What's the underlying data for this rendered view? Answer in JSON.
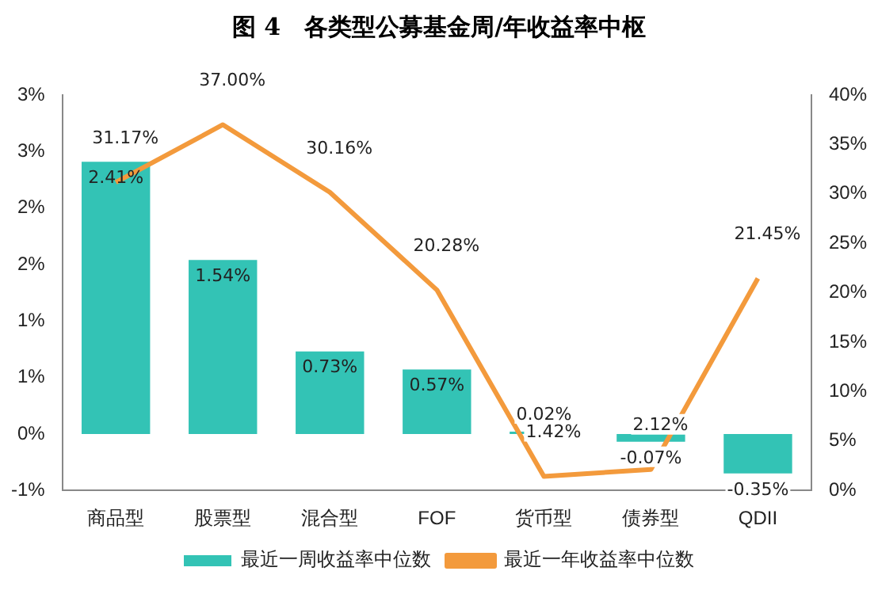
{
  "chart_data": {
    "type": "bar",
    "title": "图 4　各类型公募基金周/年收益率中枢",
    "categories": [
      "商品型",
      "股票型",
      "混合型",
      "FOF",
      "货币型",
      "债券型",
      "QDII"
    ],
    "series": [
      {
        "type": "bar",
        "name": "最近一周收益率中位数",
        "color": "#33c3b5",
        "values": [
          2.41,
          1.54,
          0.73,
          0.57,
          0.02,
          -0.07,
          -0.35
        ],
        "value_labels": [
          "2.41%",
          "1.54%",
          "0.73%",
          "0.57%",
          "0.02%",
          "-0.07%",
          "-0.35%"
        ]
      },
      {
        "type": "line",
        "axis": "y2",
        "name": "最近一年收益率中位数",
        "color": "#f39a3c",
        "values": [
          31.17,
          37.0,
          30.16,
          20.28,
          1.42,
          2.12,
          21.45
        ],
        "value_labels": [
          "31.17%",
          "37.00%",
          "30.16%",
          "20.28%",
          "1.42%",
          "2.12%",
          "21.45%"
        ]
      }
    ],
    "ylim": [
      -0.5,
      3
    ],
    "yticks": [
      {
        "value": -0.5,
        "label": "-1%"
      },
      {
        "value": 0,
        "label": "0%"
      },
      {
        "value": 0.5,
        "label": "1%"
      },
      {
        "value": 1,
        "label": "1%"
      },
      {
        "value": 1.5,
        "label": "2%"
      },
      {
        "value": 2,
        "label": "2%"
      },
      {
        "value": 2.5,
        "label": "3%"
      },
      {
        "value": 3,
        "label": "3%"
      }
    ],
    "y2lim": [
      0,
      40
    ],
    "y2ticks": [
      {
        "value": 0,
        "label": "0%"
      },
      {
        "value": 5,
        "label": "5%"
      },
      {
        "value": 10,
        "label": "10%"
      },
      {
        "value": 15,
        "label": "15%"
      },
      {
        "value": 20,
        "label": "20%"
      },
      {
        "value": 25,
        "label": "25%"
      },
      {
        "value": 30,
        "label": "30%"
      },
      {
        "value": 35,
        "label": "35%"
      },
      {
        "value": 40,
        "label": "40%"
      }
    ],
    "grid": false,
    "legend": "bottom",
    "marker": "none"
  }
}
